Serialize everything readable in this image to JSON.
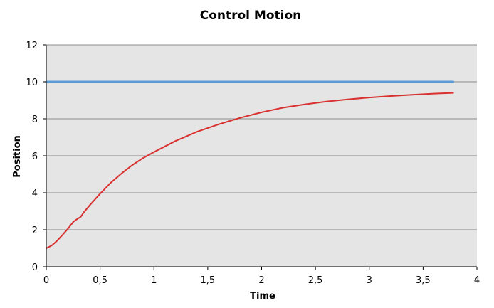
{
  "chart_data": {
    "type": "line",
    "title": "Control Motion",
    "xlabel": "Time",
    "ylabel": "Position",
    "xlim": [
      0,
      4
    ],
    "ylim": [
      0,
      12
    ],
    "x_ticks": [
      "0",
      "0,5",
      "1",
      "1,5",
      "2",
      "2,5",
      "3",
      "3,5",
      "4"
    ],
    "x_tick_values": [
      0,
      0.5,
      1,
      1.5,
      2,
      2.5,
      3,
      3.5,
      4
    ],
    "y_ticks": [
      "0",
      "2",
      "4",
      "6",
      "8",
      "10",
      "12"
    ],
    "y_tick_values": [
      0,
      2,
      4,
      6,
      8,
      10,
      12
    ],
    "grid": "horizontal",
    "legend": "none",
    "plot_background": "#e5e5e5",
    "series": [
      {
        "color": "#5b9bd5",
        "x": [
          0,
          3.78
        ],
        "y": [
          10,
          10
        ]
      },
      {
        "color": "#d93030",
        "x": [
          0,
          0.05,
          0.1,
          0.15,
          0.2,
          0.25,
          0.28,
          0.32,
          0.35,
          0.4,
          0.5,
          0.6,
          0.7,
          0.8,
          0.9,
          1.0,
          1.2,
          1.4,
          1.6,
          1.8,
          2.0,
          2.2,
          2.4,
          2.6,
          2.8,
          3.0,
          3.2,
          3.4,
          3.6,
          3.78
        ],
        "y": [
          1.0,
          1.15,
          1.4,
          1.72,
          2.05,
          2.42,
          2.55,
          2.7,
          2.95,
          3.3,
          3.95,
          4.55,
          5.05,
          5.5,
          5.88,
          6.2,
          6.8,
          7.3,
          7.7,
          8.05,
          8.35,
          8.6,
          8.78,
          8.93,
          9.05,
          9.15,
          9.23,
          9.3,
          9.36,
          9.4
        ]
      }
    ]
  }
}
